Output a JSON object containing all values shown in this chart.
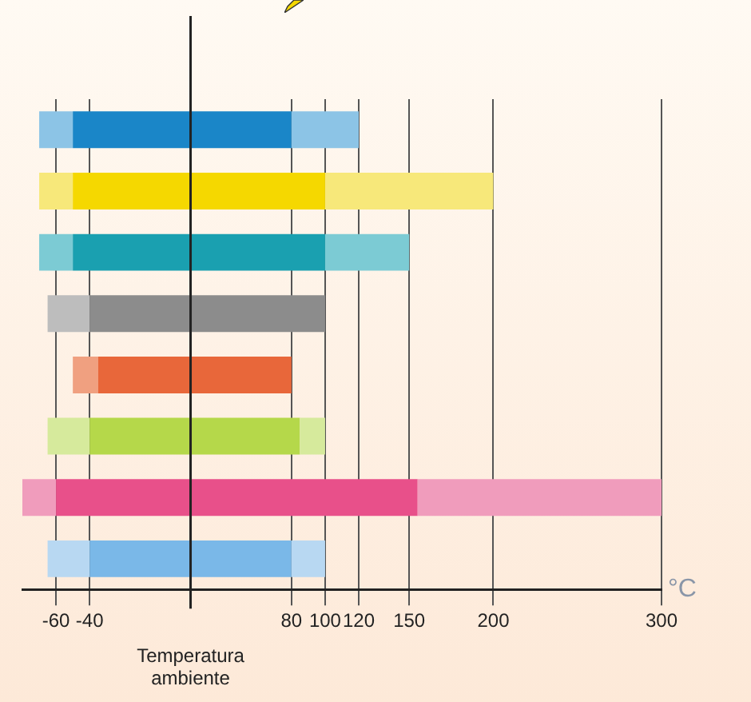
{
  "chart_data": {
    "type": "bar",
    "orientation": "horizontal",
    "xlabel": "°C",
    "categories": [
      null,
      null,
      null,
      null,
      null,
      null,
      null,
      null
    ],
    "series": [
      {
        "colors": [
          "#8cc4e6",
          "#f7e87a",
          "#7ccbd4",
          "#bdbdbd",
          "#f0a080",
          "#d6ea9c",
          "#f09cbc",
          "#b8d8f2"
        ],
        "base": [
          -70,
          -70,
          -70,
          -65,
          -50,
          -65,
          -80,
          -65
        ],
        "values": [
          20,
          20,
          20,
          25,
          15,
          25,
          20,
          25
        ]
      },
      {
        "colors": [
          "#1a86c8",
          "#f5d800",
          "#1aa0b0",
          "#8c8c8c",
          "#e8673a",
          "#b5d84a",
          "#e8508a",
          "#7ab8e8"
        ],
        "base": [
          -50,
          -50,
          -50,
          -40,
          -35,
          -40,
          -60,
          -40
        ],
        "values": [
          130,
          150,
          150,
          140,
          115,
          125,
          215,
          120
        ]
      },
      {
        "colors": [
          "#8cc4e6",
          "#f7e87a",
          "#7ccbd4",
          "#bdbdbd",
          "#f0a080",
          "#d6ea9c",
          "#f09cbc",
          "#b8d8f2"
        ],
        "base": [
          80,
          100,
          100,
          null,
          null,
          85,
          155,
          80
        ],
        "values": [
          40,
          100,
          50,
          null,
          null,
          15,
          145,
          20
        ]
      }
    ],
    "xlim": [
      -80,
      300
    ],
    "xticks": [
      -60,
      -40,
      80,
      100,
      120,
      150,
      200,
      300
    ],
    "grid": "x",
    "ref_lines": [
      {
        "axis": "x",
        "value": 20,
        "label": "Temperatura ambiente"
      }
    ]
  }
}
